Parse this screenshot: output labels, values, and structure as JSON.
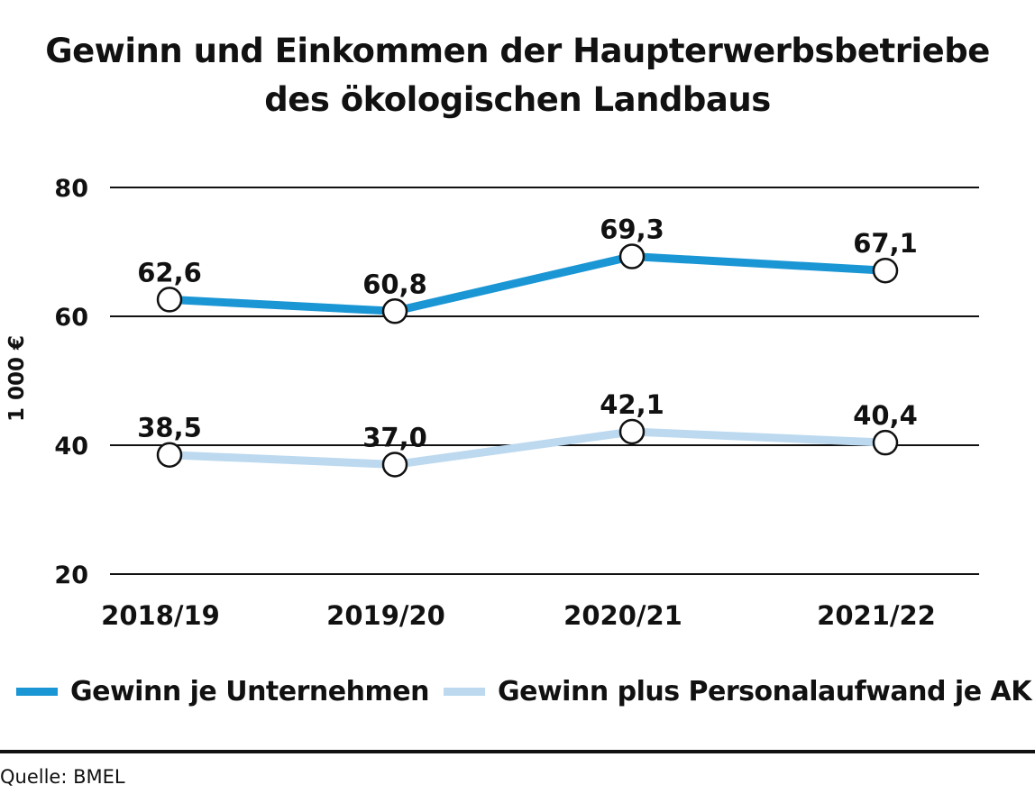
{
  "title_line1": "Gewinn und Einkommen der Haupterwerbsbetriebe",
  "title_line2": "des ökologischen Landbaus",
  "source": "Quelle:  BMEL",
  "chart_data": {
    "type": "line",
    "title": "Gewinn und Einkommen der Haupterwerbsbetriebe des ökologischen Landbaus",
    "xlabel": "",
    "ylabel": "1 000 €",
    "categories": [
      "2018/19",
      "2019/20",
      "2020/21",
      "2021/22"
    ],
    "ylim": [
      20,
      80
    ],
    "yticks": [
      20,
      40,
      60,
      80
    ],
    "grid": true,
    "legend": "bottom",
    "series": [
      {
        "name": "Gewinn je Unternehmen",
        "values": [
          62.6,
          60.8,
          69.3,
          67.1
        ],
        "labels": [
          "62,6",
          "60,8",
          "69,3",
          "67,1"
        ],
        "color": "#1a96d4"
      },
      {
        "name": "Gewinn plus Personalaufwand je AK",
        "values": [
          38.5,
          37.0,
          42.1,
          40.4
        ],
        "labels": [
          "38,5",
          "37,0",
          "42,1",
          "40,4"
        ],
        "color": "#bcd9ef"
      }
    ]
  }
}
